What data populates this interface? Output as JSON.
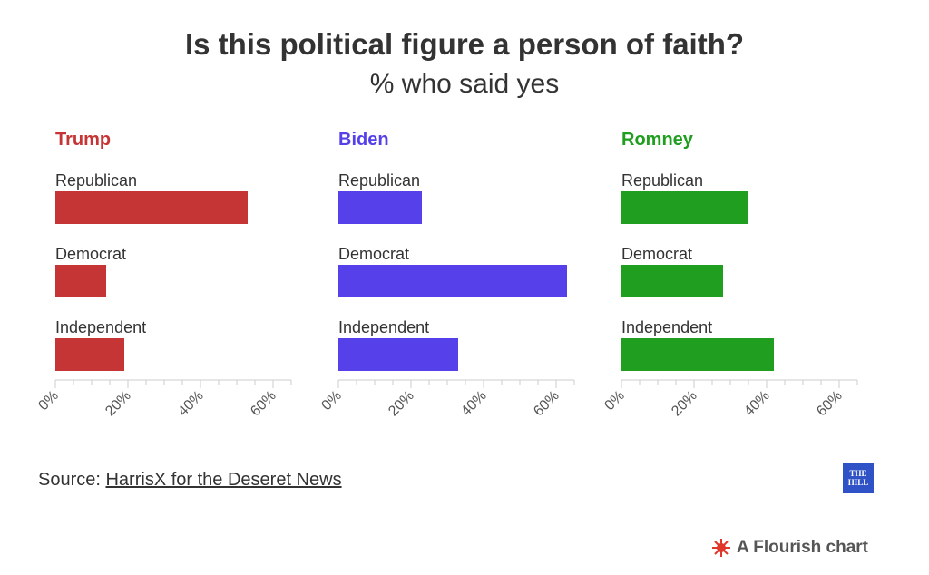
{
  "title": "Is this political figure a person of faith?",
  "subtitle": "% who said yes",
  "source": {
    "prefix": "Source: ",
    "link_text": "HarrisX for the Deseret News"
  },
  "logo": {
    "line1": "THE",
    "line2": "HILL",
    "bg_color": "#2f52c6"
  },
  "flourish_label": "A Flourish chart",
  "chart_data": [
    {
      "type": "bar",
      "orientation": "horizontal",
      "title": "Trump",
      "color": "#c53535",
      "categories": [
        "Republican",
        "Democrat",
        "Independent"
      ],
      "values": [
        53,
        14,
        19
      ],
      "xlim": [
        0,
        65
      ],
      "ticks": [
        "0%",
        "20%",
        "40%",
        "60%"
      ],
      "tick_values": [
        0,
        20,
        40,
        60
      ]
    },
    {
      "type": "bar",
      "orientation": "horizontal",
      "title": "Biden",
      "color": "#5540ea",
      "categories": [
        "Republican",
        "Democrat",
        "Independent"
      ],
      "values": [
        23,
        63,
        33
      ],
      "xlim": [
        0,
        65
      ],
      "ticks": [
        "0%",
        "20%",
        "40%",
        "60%"
      ],
      "tick_values": [
        0,
        20,
        40,
        60
      ]
    },
    {
      "type": "bar",
      "orientation": "horizontal",
      "title": "Romney",
      "color": "#1f9e1f",
      "categories": [
        "Republican",
        "Democrat",
        "Independent"
      ],
      "values": [
        35,
        28,
        42
      ],
      "xlim": [
        0,
        65
      ],
      "ticks": [
        "0%",
        "20%",
        "40%",
        "60%"
      ],
      "tick_values": [
        0,
        20,
        40,
        60
      ]
    }
  ]
}
